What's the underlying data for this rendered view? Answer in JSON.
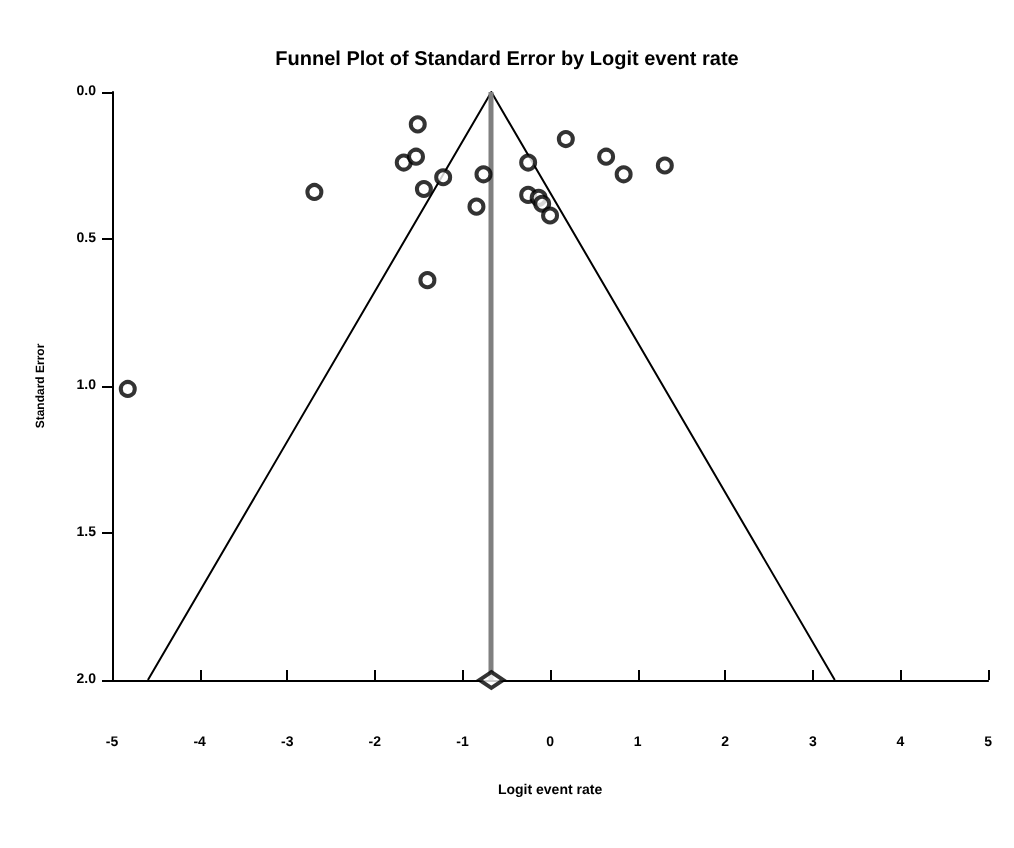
{
  "chart_data": {
    "type": "scatter",
    "title": "Funnel Plot of Standard Error by Logit event rate",
    "xlabel": "Logit event rate",
    "ylabel": "Standard Error",
    "xlim": [
      -5,
      5
    ],
    "xticks": [
      -5,
      -4,
      -3,
      -2,
      -1,
      0,
      1,
      2,
      3,
      4,
      5
    ],
    "ylim": [
      2.0,
      0.0
    ],
    "yticks": [
      {
        "value": 0,
        "label": "0.0"
      },
      {
        "value": 0.5,
        "label": "0.5"
      },
      {
        "value": 1,
        "label": "1.0"
      },
      {
        "value": 1.5,
        "label": "1.5"
      },
      {
        "value": 2,
        "label": "2.0"
      }
    ],
    "grid": false,
    "marker": "circle",
    "series": [
      {
        "color": "#000000",
        "x": [
          -1.51,
          -1.67,
          -1.53,
          -1.44,
          -1.22,
          -2.69,
          -0.76,
          -0.84,
          -1.4,
          -4.82,
          -0.25,
          0.18,
          -0.25,
          -0.13,
          -0.09,
          0.0,
          0.84,
          0.64,
          1.31
        ],
        "values": [
          0.11,
          0.24,
          0.22,
          0.33,
          0.29,
          0.34,
          0.28,
          0.39,
          0.64,
          1.01,
          0.24,
          0.16,
          0.35,
          0.36,
          0.38,
          0.42,
          0.28,
          0.22,
          0.25
        ]
      },
      {
        "type": "line",
        "color": "#000000",
        "marker": "none",
        "line_style": "solid",
        "x": [
          -4.59,
          -0.67,
          3.25
        ],
        "values": [
          2.0,
          0.0,
          2.0
        ]
      },
      {
        "color": "#000000",
        "marker": "diamond",
        "x": [
          -0.67
        ],
        "values": [
          2.0
        ]
      }
    ],
    "ref_lines": [
      {
        "axis": "x",
        "value": -0.67,
        "color": "#808080",
        "line_style": "solid"
      }
    ]
  }
}
